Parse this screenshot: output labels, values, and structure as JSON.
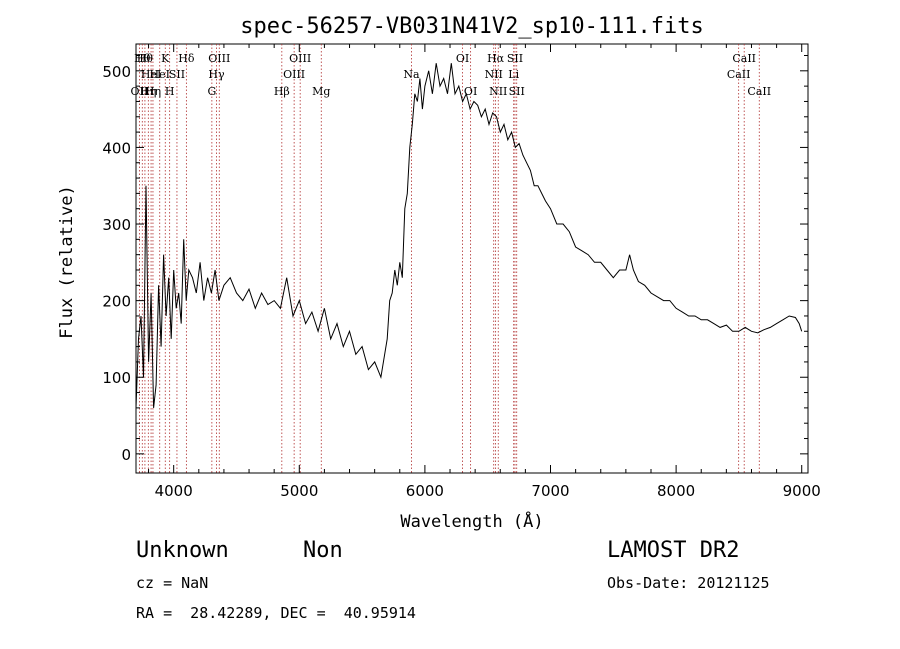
{
  "chart_data": {
    "type": "line",
    "title": "spec-56257-VB031N41V2_sp10-111.fits",
    "xlabel": "Wavelength (Å)",
    "ylabel": "Flux (relative)",
    "xlim": [
      3700,
      9050
    ],
    "ylim": [
      -25,
      535
    ],
    "xticks": [
      4000,
      5000,
      6000,
      7000,
      8000,
      9000
    ],
    "yticks": [
      0,
      100,
      200,
      300,
      400,
      500
    ],
    "grid": false,
    "series": [
      {
        "x": [
          3700,
          3720,
          3740,
          3760,
          3780,
          3800,
          3820,
          3840,
          3860,
          3880,
          3900,
          3920,
          3940,
          3960,
          3980,
          4000,
          4020,
          4040,
          4060,
          4080,
          4100,
          4120,
          4150,
          4180,
          4210,
          4240,
          4270,
          4300,
          4330,
          4360,
          4400,
          4450,
          4500,
          4550,
          4600,
          4650,
          4700,
          4750,
          4800,
          4850,
          4900,
          4950,
          5000,
          5050,
          5100,
          5150,
          5200,
          5250,
          5300,
          5350,
          5400,
          5450,
          5500,
          5550,
          5600,
          5650,
          5700,
          5720,
          5740,
          5760,
          5780,
          5800,
          5820,
          5840,
          5860,
          5880,
          5900,
          5920,
          5940,
          5960,
          5980,
          6000,
          6030,
          6060,
          6090,
          6120,
          6150,
          6180,
          6210,
          6240,
          6270,
          6300,
          6330,
          6360,
          6390,
          6420,
          6450,
          6480,
          6510,
          6540,
          6570,
          6600,
          6630,
          6660,
          6690,
          6720,
          6750,
          6780,
          6810,
          6840,
          6870,
          6900,
          6930,
          6960,
          7000,
          7050,
          7100,
          7150,
          7200,
          7250,
          7300,
          7350,
          7400,
          7450,
          7500,
          7550,
          7600,
          7630,
          7660,
          7700,
          7750,
          7800,
          7850,
          7900,
          7950,
          8000,
          8050,
          8100,
          8150,
          8200,
          8250,
          8300,
          8350,
          8400,
          8450,
          8500,
          8550,
          8600,
          8650,
          8700,
          8750,
          8800,
          8850,
          8900,
          8950,
          8980,
          9000
        ],
        "y": [
          60,
          150,
          180,
          100,
          350,
          120,
          210,
          60,
          90,
          220,
          140,
          260,
          180,
          230,
          150,
          240,
          190,
          210,
          170,
          280,
          200,
          240,
          230,
          210,
          250,
          200,
          230,
          210,
          240,
          200,
          220,
          230,
          210,
          200,
          215,
          190,
          210,
          195,
          200,
          190,
          230,
          180,
          200,
          170,
          185,
          160,
          190,
          150,
          170,
          140,
          160,
          130,
          140,
          110,
          120,
          100,
          150,
          200,
          210,
          240,
          220,
          250,
          230,
          320,
          340,
          400,
          430,
          470,
          460,
          490,
          450,
          480,
          500,
          470,
          510,
          480,
          490,
          470,
          510,
          470,
          480,
          460,
          470,
          450,
          460,
          455,
          440,
          450,
          430,
          445,
          440,
          420,
          430,
          410,
          420,
          400,
          405,
          390,
          380,
          370,
          350,
          350,
          340,
          330,
          320,
          300,
          300,
          290,
          270,
          265,
          260,
          250,
          250,
          240,
          230,
          240,
          240,
          260,
          240,
          225,
          220,
          210,
          205,
          200,
          200,
          190,
          185,
          180,
          180,
          175,
          175,
          170,
          165,
          168,
          160,
          160,
          165,
          160,
          158,
          162,
          165,
          170,
          175,
          180,
          178,
          170,
          160
        ]
      }
    ],
    "lines": [
      {
        "wl": 3727,
        "label": "OII",
        "row": 3
      },
      {
        "wl": 3750,
        "label": "Hθ",
        "row": 1
      },
      {
        "wl": 3771,
        "label": "Hθ",
        "row": 1
      },
      {
        "wl": 3798,
        "label": "Hη",
        "row": 3
      },
      {
        "wl": 3820,
        "label": "HeI",
        "row": 2
      },
      {
        "wl": 3835,
        "label": "Hη",
        "row": 3
      },
      {
        "wl": 3889,
        "label": "HeI",
        "row": 2
      },
      {
        "wl": 3933,
        "label": "K",
        "row": 1
      },
      {
        "wl": 3968,
        "label": "H",
        "row": 3
      },
      {
        "wl": 4026,
        "label": "SII",
        "row": 2
      },
      {
        "wl": 4101,
        "label": "Hδ",
        "row": 1
      },
      {
        "wl": 4304,
        "label": "G",
        "row": 3
      },
      {
        "wl": 4341,
        "label": "Hγ",
        "row": 2
      },
      {
        "wl": 4363,
        "label": "OIII",
        "row": 1
      },
      {
        "wl": 4861,
        "label": "Hβ",
        "row": 3
      },
      {
        "wl": 4959,
        "label": "OIII",
        "row": 2
      },
      {
        "wl": 5007,
        "label": "OIII",
        "row": 1
      },
      {
        "wl": 5175,
        "label": "Mg",
        "row": 3
      },
      {
        "wl": 5893,
        "label": "Na",
        "row": 2
      },
      {
        "wl": 6300,
        "label": "OI",
        "row": 1
      },
      {
        "wl": 6364,
        "label": "OI",
        "row": 3
      },
      {
        "wl": 6548,
        "label": "NII",
        "row": 2
      },
      {
        "wl": 6563,
        "label": "Hα",
        "row": 1
      },
      {
        "wl": 6584,
        "label": "NII",
        "row": 3
      },
      {
        "wl": 6707,
        "label": "Li",
        "row": 2
      },
      {
        "wl": 6717,
        "label": "SII",
        "row": 1
      },
      {
        "wl": 6731,
        "label": "SII",
        "row": 3
      },
      {
        "wl": 8498,
        "label": "CaII",
        "row": 2
      },
      {
        "wl": 8542,
        "label": "CaII",
        "row": 1
      },
      {
        "wl": 8662,
        "label": "CaII",
        "row": 3
      }
    ]
  },
  "info": {
    "object_class": "Unknown",
    "subclass": "Non",
    "survey": "LAMOST DR2",
    "redshift": "cz = NaN",
    "obs_date": "Obs-Date: 20121125",
    "coords": "RA =  28.42289, DEC =  40.95914"
  },
  "colors": {
    "spectrum": "#000000",
    "line_markers": "#b03030",
    "axes": "#000000",
    "background": "#ffffff"
  }
}
